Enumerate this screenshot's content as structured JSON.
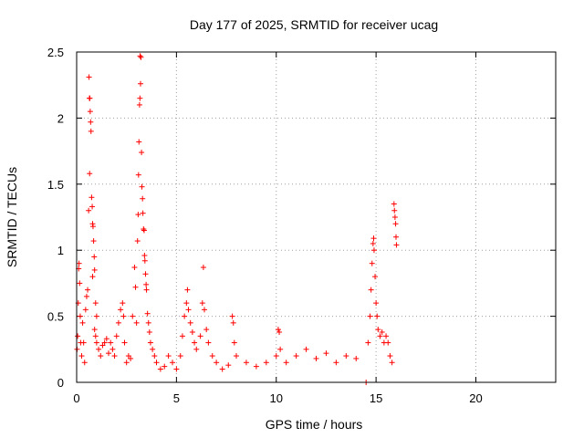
{
  "chart_data": {
    "type": "scatter",
    "title": "Day 177 of 2025, SRMTID for receiver ucag",
    "xlabel": "GPS time / hours",
    "ylabel": "SRMTID / TECUs",
    "xlim": [
      0,
      24
    ],
    "ylim": [
      0,
      2.5
    ],
    "grid": true,
    "marker": "+",
    "color": "#ff0000",
    "xticks": [
      0,
      5,
      10,
      15,
      20
    ],
    "xtick_labels": [
      "0",
      "5",
      "10",
      "15",
      "20"
    ],
    "yticks": [
      0,
      0.5,
      1,
      1.5,
      2,
      2.5
    ],
    "ytick_labels": [
      "0",
      "0.5",
      "1",
      "1.5",
      "2",
      "2.5"
    ],
    "series": [
      {
        "name": "SRMTID",
        "points": [
          [
            0.02,
            0.25
          ],
          [
            0.05,
            0.35
          ],
          [
            0.08,
            0.6
          ],
          [
            0.1,
            0.86
          ],
          [
            0.12,
            0.9
          ],
          [
            0.15,
            0.75
          ],
          [
            0.18,
            0.5
          ],
          [
            0.2,
            0.3
          ],
          [
            0.25,
            0.2
          ],
          [
            0.3,
            0.45
          ],
          [
            0.35,
            0.3
          ],
          [
            0.4,
            0.15
          ],
          [
            0.45,
            0.55
          ],
          [
            0.5,
            0.65
          ],
          [
            0.55,
            0.7
          ],
          [
            0.6,
            1.3
          ],
          [
            0.62,
            2.31
          ],
          [
            0.64,
            2.15
          ],
          [
            0.66,
            2.15
          ],
          [
            0.68,
            2.05
          ],
          [
            0.7,
            1.97
          ],
          [
            0.72,
            1.9
          ],
          [
            0.65,
            1.58
          ],
          [
            0.75,
            1.4
          ],
          [
            0.78,
            1.33
          ],
          [
            0.8,
            1.2
          ],
          [
            0.82,
            1.18
          ],
          [
            0.85,
            1.07
          ],
          [
            0.88,
            0.95
          ],
          [
            0.9,
            0.85
          ],
          [
            0.8,
            0.8
          ],
          [
            0.95,
            0.6
          ],
          [
            1.0,
            0.5
          ],
          [
            0.9,
            0.4
          ],
          [
            0.95,
            0.35
          ],
          [
            1.0,
            0.3
          ],
          [
            1.1,
            0.25
          ],
          [
            1.2,
            0.2
          ],
          [
            1.3,
            0.28
          ],
          [
            1.4,
            0.3
          ],
          [
            1.5,
            0.33
          ],
          [
            1.6,
            0.22
          ],
          [
            1.7,
            0.3
          ],
          [
            1.8,
            0.25
          ],
          [
            1.9,
            0.2
          ],
          [
            2.0,
            0.35
          ],
          [
            2.1,
            0.45
          ],
          [
            2.2,
            0.55
          ],
          [
            2.3,
            0.6
          ],
          [
            2.35,
            0.5
          ],
          [
            2.4,
            0.3
          ],
          [
            2.5,
            0.15
          ],
          [
            2.6,
            0.2
          ],
          [
            2.7,
            0.18
          ],
          [
            2.8,
            0.5
          ],
          [
            2.9,
            0.87
          ],
          [
            2.95,
            0.72
          ],
          [
            3.0,
            0.45
          ],
          [
            3.05,
            1.07
          ],
          [
            3.08,
            1.27
          ],
          [
            3.1,
            1.57
          ],
          [
            3.12,
            1.82
          ],
          [
            3.15,
            2.1
          ],
          [
            3.17,
            2.15
          ],
          [
            3.2,
            2.26
          ],
          [
            3.22,
            2.46
          ],
          [
            3.18,
            2.47
          ],
          [
            3.25,
            1.74
          ],
          [
            3.27,
            1.48
          ],
          [
            3.3,
            1.39
          ],
          [
            3.32,
            1.28
          ],
          [
            3.35,
            1.16
          ],
          [
            3.38,
            1.15
          ],
          [
            3.4,
            0.96
          ],
          [
            3.42,
            0.92
          ],
          [
            3.45,
            0.82
          ],
          [
            3.48,
            0.74
          ],
          [
            3.5,
            0.7
          ],
          [
            3.55,
            0.52
          ],
          [
            3.6,
            0.45
          ],
          [
            3.65,
            0.38
          ],
          [
            3.7,
            0.3
          ],
          [
            3.8,
            0.25
          ],
          [
            3.9,
            0.2
          ],
          [
            4.0,
            0.15
          ],
          [
            4.2,
            0.1
          ],
          [
            4.4,
            0.12
          ],
          [
            4.6,
            0.2
          ],
          [
            4.8,
            0.15
          ],
          [
            5.0,
            0.1
          ],
          [
            5.2,
            0.2
          ],
          [
            5.3,
            0.35
          ],
          [
            5.4,
            0.5
          ],
          [
            5.5,
            0.6
          ],
          [
            5.55,
            0.7
          ],
          [
            5.6,
            0.55
          ],
          [
            5.7,
            0.45
          ],
          [
            5.8,
            0.38
          ],
          [
            5.9,
            0.3
          ],
          [
            6.0,
            0.25
          ],
          [
            6.2,
            0.35
          ],
          [
            6.3,
            0.6
          ],
          [
            6.35,
            0.87
          ],
          [
            6.4,
            0.55
          ],
          [
            6.5,
            0.4
          ],
          [
            6.6,
            0.3
          ],
          [
            6.8,
            0.2
          ],
          [
            7.0,
            0.15
          ],
          [
            7.3,
            0.1
          ],
          [
            7.6,
            0.13
          ],
          [
            7.8,
            0.5
          ],
          [
            7.85,
            0.45
          ],
          [
            7.9,
            0.3
          ],
          [
            8.0,
            0.2
          ],
          [
            8.5,
            0.15
          ],
          [
            9.0,
            0.12
          ],
          [
            9.5,
            0.15
          ],
          [
            10.0,
            0.2
          ],
          [
            10.1,
            0.4
          ],
          [
            10.15,
            0.38
          ],
          [
            10.2,
            0.25
          ],
          [
            10.5,
            0.15
          ],
          [
            11.0,
            0.2
          ],
          [
            11.5,
            0.25
          ],
          [
            12.0,
            0.18
          ],
          [
            12.5,
            0.22
          ],
          [
            13.0,
            0.15
          ],
          [
            13.5,
            0.2
          ],
          [
            14.0,
            0.18
          ],
          [
            14.5,
            0.0
          ],
          [
            14.6,
            0.3
          ],
          [
            14.7,
            0.5
          ],
          [
            14.75,
            0.7
          ],
          [
            14.8,
            0.9
          ],
          [
            14.85,
            1.05
          ],
          [
            14.88,
            1.09
          ],
          [
            14.9,
            1.0
          ],
          [
            14.95,
            0.8
          ],
          [
            15.0,
            0.6
          ],
          [
            15.05,
            0.5
          ],
          [
            15.1,
            0.4
          ],
          [
            15.2,
            0.35
          ],
          [
            15.3,
            0.38
          ],
          [
            15.4,
            0.3
          ],
          [
            15.5,
            0.35
          ],
          [
            15.6,
            0.3
          ],
          [
            15.7,
            0.2
          ],
          [
            15.8,
            0.15
          ],
          [
            15.9,
            1.35
          ],
          [
            15.92,
            1.3
          ],
          [
            15.95,
            1.25
          ],
          [
            15.98,
            1.2
          ],
          [
            16.0,
            1.1
          ],
          [
            16.02,
            1.04
          ]
        ]
      }
    ]
  }
}
